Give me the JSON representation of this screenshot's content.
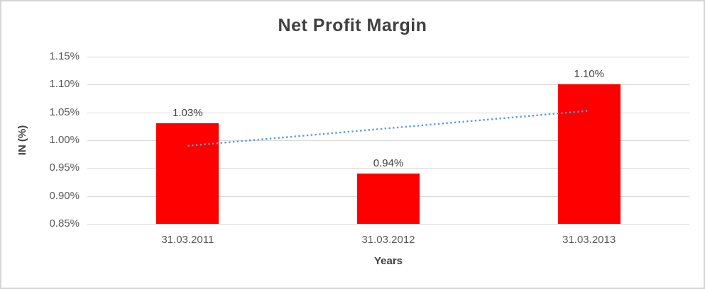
{
  "window": {
    "background": "#ffffff",
    "border_color": "#d5d5d5"
  },
  "colors": {
    "title_text": "#404040",
    "axis_tick_text": "#595959",
    "axis_title_text": "#404040",
    "data_label_text": "#404040",
    "gridline": "#d9d9d9",
    "bar_fill": "#ff0000",
    "trendline": "#5b9bd5"
  },
  "chart_data": {
    "type": "bar",
    "title": "Net Profit Margin",
    "xlabel": "Years",
    "ylabel": "IN (%)",
    "categories": [
      "31.03.2011",
      "31.03.2012",
      "31.03.2013"
    ],
    "series": [
      {
        "name": "Net Profit Margin",
        "values": [
          1.03,
          0.94,
          1.1
        ],
        "color": "#ff0000"
      }
    ],
    "data_labels": [
      "1.03%",
      "0.94%",
      "1.10%"
    ],
    "ylim": [
      0.85,
      1.15
    ],
    "yticks": [
      0.85,
      0.9,
      0.95,
      1.0,
      1.05,
      1.1,
      1.15
    ],
    "ytick_labels": [
      "0.85%",
      "0.90%",
      "0.95%",
      "1.00%",
      "1.05%",
      "1.10%",
      "1.15%"
    ],
    "grid": true,
    "legend_position": "none",
    "trendline": {
      "type": "linear",
      "style": "dotted",
      "color": "#5b9bd5",
      "start_value": 0.99,
      "end_value": 1.053
    }
  }
}
